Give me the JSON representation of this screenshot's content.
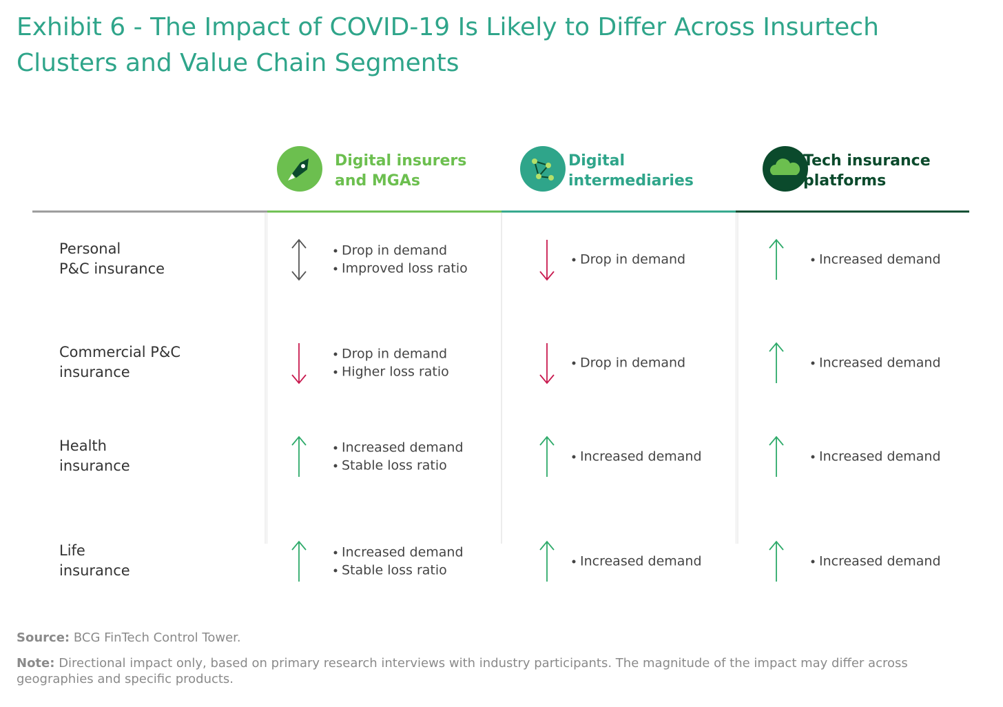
{
  "title": "Exhibit 6 - The Impact of COVID-19 Is Likely to Differ Across Insurtech Clusters and Value Chain Segments",
  "columns": [
    {
      "label": [
        "Digital insurers",
        "and MGAs"
      ],
      "color": "#6cbf4f"
    },
    {
      "label": [
        "Digital",
        "intermediaries"
      ],
      "color": "#2fa58a"
    },
    {
      "label": [
        "Tech insurance",
        "platforms"
      ],
      "color": "#0b4a2c"
    }
  ],
  "rows": [
    {
      "label": [
        "Personal",
        "P&C insurance"
      ],
      "cells": [
        {
          "arrow": "both",
          "bullets": [
            "Drop in demand",
            "Improved loss ratio"
          ]
        },
        {
          "arrow": "down",
          "bullets": [
            "Drop in demand"
          ]
        },
        {
          "arrow": "up",
          "bullets": [
            "Increased demand"
          ]
        }
      ]
    },
    {
      "label": [
        "Commercial P&C",
        "insurance"
      ],
      "cells": [
        {
          "arrow": "down",
          "bullets": [
            "Drop in demand",
            "Higher loss ratio"
          ]
        },
        {
          "arrow": "down",
          "bullets": [
            "Drop in demand"
          ]
        },
        {
          "arrow": "up",
          "bullets": [
            "Increased demand"
          ]
        }
      ]
    },
    {
      "label": [
        "Health",
        "insurance"
      ],
      "cells": [
        {
          "arrow": "up",
          "bullets": [
            "Increased demand",
            "Stable loss ratio"
          ]
        },
        {
          "arrow": "up",
          "bullets": [
            "Increased demand"
          ]
        },
        {
          "arrow": "up",
          "bullets": [
            "Increased demand"
          ]
        }
      ]
    },
    {
      "label": [
        "Life",
        "insurance"
      ],
      "cells": [
        {
          "arrow": "up",
          "bullets": [
            "Increased demand",
            "Stable loss ratio"
          ]
        },
        {
          "arrow": "up",
          "bullets": [
            "Increased demand"
          ]
        },
        {
          "arrow": "up",
          "bullets": [
            "Increased demand"
          ]
        }
      ]
    }
  ],
  "source": {
    "label": "Source:",
    "text": "BCG FinTech Control Tower."
  },
  "note": {
    "label": "Note:",
    "text": "Directional impact only, based on primary research interviews with industry participants. The magnitude of the impact may differ across geographies and specific products."
  }
}
